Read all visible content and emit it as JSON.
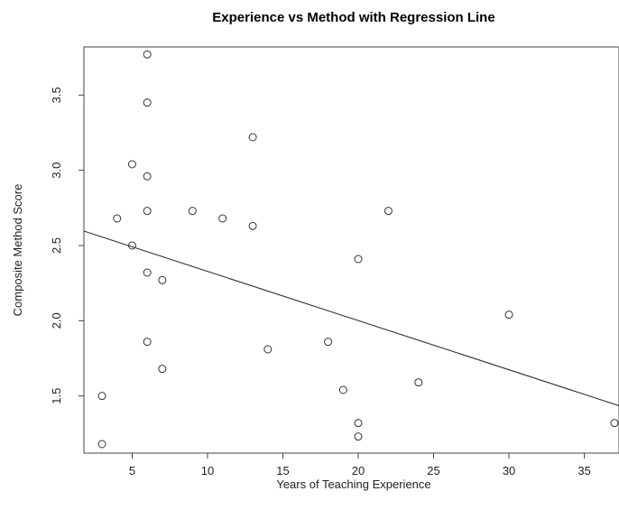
{
  "chart_data": {
    "type": "scatter",
    "title": "Experience vs Method with Regression Line",
    "xlabel": "Years of Teaching Experience",
    "ylabel": "Composite Method Score",
    "xlim": [
      1.8,
      37.3
    ],
    "ylim": [
      1.12,
      3.82
    ],
    "xticks": [
      5,
      10,
      15,
      20,
      25,
      30,
      35
    ],
    "yticks": [
      1.5,
      2.0,
      2.5,
      3.0,
      3.5
    ],
    "grid": false,
    "marker": "open-circle",
    "points": [
      {
        "x": 6,
        "y": 3.77
      },
      {
        "x": 6,
        "y": 3.45
      },
      {
        "x": 13,
        "y": 3.22
      },
      {
        "x": 5,
        "y": 3.04
      },
      {
        "x": 6,
        "y": 2.96
      },
      {
        "x": 6,
        "y": 2.73
      },
      {
        "x": 9,
        "y": 2.73
      },
      {
        "x": 22,
        "y": 2.73
      },
      {
        "x": 4,
        "y": 2.68
      },
      {
        "x": 11,
        "y": 2.68
      },
      {
        "x": 13,
        "y": 2.63
      },
      {
        "x": 5,
        "y": 2.5
      },
      {
        "x": 20,
        "y": 2.41
      },
      {
        "x": 6,
        "y": 2.32
      },
      {
        "x": 7,
        "y": 2.27
      },
      {
        "x": 30,
        "y": 2.04
      },
      {
        "x": 6,
        "y": 1.86
      },
      {
        "x": 18,
        "y": 1.86
      },
      {
        "x": 14,
        "y": 1.81
      },
      {
        "x": 7,
        "y": 1.68
      },
      {
        "x": 24,
        "y": 1.59
      },
      {
        "x": 19,
        "y": 1.54
      },
      {
        "x": 3,
        "y": 1.5
      },
      {
        "x": 20,
        "y": 1.32
      },
      {
        "x": 37,
        "y": 1.32
      },
      {
        "x": 20,
        "y": 1.23
      },
      {
        "x": 3,
        "y": 1.18
      }
    ],
    "regression_line": {
      "intercept": 2.655,
      "slope": -0.0327
    }
  }
}
